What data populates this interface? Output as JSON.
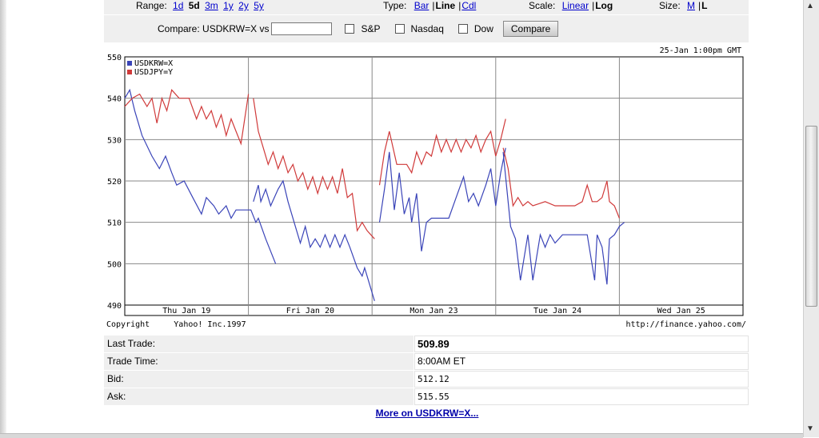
{
  "controls": {
    "range_label": "Range:",
    "range_options": [
      "1d",
      "5d",
      "3m",
      "1y",
      "2y",
      "5y"
    ],
    "range_selected": "5d",
    "type_label": "Type:",
    "type_bar": "Bar",
    "type_line": "Line",
    "type_cdl": "Cdl",
    "scale_label": "Scale:",
    "scale_linear": "Linear",
    "scale_log": "Log",
    "size_label": "Size:",
    "size_m": "M",
    "size_l": "L"
  },
  "compare": {
    "label": "Compare: USDKRW=X vs",
    "input_value": "",
    "sp": "S&P",
    "nasdaq": "Nasdaq",
    "dow": "Dow",
    "button": "Compare"
  },
  "chart_data": {
    "type": "line",
    "timestamp": "25-Jan 1:00pm GMT",
    "ylim": [
      490,
      550
    ],
    "y_ticks": [
      "550",
      "540",
      "530",
      "520",
      "510",
      "500",
      "490"
    ],
    "x_labels": [
      "Thu Jan 19",
      "Fri Jan 20",
      "Mon Jan 23",
      "Tue Jan 24",
      "Wed Jan 25"
    ],
    "series": [
      {
        "name": "USDKRW=X",
        "color": "#3a44b8",
        "segments": [
          [
            [
              0.0,
              540
            ],
            [
              0.04,
              542
            ],
            [
              0.08,
              537
            ],
            [
              0.14,
              531
            ],
            [
              0.22,
              526
            ],
            [
              0.28,
              523
            ],
            [
              0.33,
              526
            ],
            [
              0.38,
              522
            ],
            [
              0.42,
              519
            ],
            [
              0.48,
              520
            ],
            [
              0.55,
              516
            ],
            [
              0.62,
              512
            ],
            [
              0.66,
              516
            ],
            [
              0.72,
              514
            ],
            [
              0.76,
              512
            ],
            [
              0.82,
              514
            ],
            [
              0.86,
              511
            ],
            [
              0.9,
              513
            ],
            [
              0.96,
              513
            ],
            [
              1.02,
              513
            ],
            [
              1.06,
              510
            ],
            [
              1.08,
              511
            ],
            [
              1.14,
              506
            ],
            [
              1.22,
              500
            ]
          ],
          [
            [
              1.04,
              515
            ],
            [
              1.08,
              519
            ],
            [
              1.1,
              515
            ],
            [
              1.14,
              518
            ],
            [
              1.18,
              514
            ],
            [
              1.24,
              518
            ],
            [
              1.28,
              520
            ],
            [
              1.32,
              515
            ],
            [
              1.38,
              509
            ],
            [
              1.42,
              505
            ],
            [
              1.46,
              509
            ],
            [
              1.5,
              504
            ],
            [
              1.54,
              506
            ],
            [
              1.58,
              504
            ],
            [
              1.62,
              507
            ],
            [
              1.66,
              504
            ],
            [
              1.7,
              507
            ],
            [
              1.74,
              504
            ],
            [
              1.78,
              507
            ],
            [
              1.82,
              504
            ],
            [
              1.88,
              499
            ],
            [
              1.92,
              497
            ],
            [
              1.94,
              499
            ],
            [
              1.98,
              495
            ],
            [
              2.02,
              491
            ]
          ],
          [
            [
              2.06,
              510
            ],
            [
              2.1,
              518
            ],
            [
              2.14,
              527
            ],
            [
              2.18,
              513
            ],
            [
              2.22,
              522
            ],
            [
              2.26,
              512
            ],
            [
              2.3,
              516
            ],
            [
              2.32,
              510
            ],
            [
              2.36,
              517
            ],
            [
              2.4,
              503
            ],
            [
              2.44,
              510
            ],
            [
              2.48,
              511
            ],
            [
              2.56,
              511
            ],
            [
              2.62,
              511
            ],
            [
              2.68,
              516
            ],
            [
              2.74,
              521
            ],
            [
              2.78,
              515
            ],
            [
              2.82,
              517
            ],
            [
              2.86,
              514
            ],
            [
              2.92,
              519
            ],
            [
              2.96,
              523
            ],
            [
              3.0,
              514
            ],
            [
              3.04,
              522
            ],
            [
              3.08,
              528
            ]
          ],
          [
            [
              3.06,
              527
            ],
            [
              3.12,
              509
            ],
            [
              3.16,
              506
            ],
            [
              3.2,
              496
            ],
            [
              3.26,
              507
            ],
            [
              3.3,
              496
            ],
            [
              3.36,
              507
            ],
            [
              3.4,
              504
            ],
            [
              3.44,
              507
            ],
            [
              3.48,
              505
            ],
            [
              3.54,
              507
            ],
            [
              3.64,
              507
            ],
            [
              3.7,
              507
            ],
            [
              3.74,
              507
            ],
            [
              3.8,
              496
            ],
            [
              3.82,
              507
            ],
            [
              3.86,
              504
            ],
            [
              3.9,
              495
            ],
            [
              3.92,
              506
            ],
            [
              3.96,
              507
            ],
            [
              4.0,
              509
            ],
            [
              4.04,
              510
            ]
          ]
        ]
      },
      {
        "name": "USDJPY=Y",
        "color": "#d03a3a",
        "segments": [
          [
            [
              0.0,
              538
            ],
            [
              0.06,
              540
            ],
            [
              0.12,
              541
            ],
            [
              0.18,
              538
            ],
            [
              0.22,
              540
            ],
            [
              0.26,
              534
            ],
            [
              0.3,
              540
            ],
            [
              0.34,
              537
            ],
            [
              0.38,
              542
            ],
            [
              0.44,
              540
            ],
            [
              0.52,
              540
            ],
            [
              0.58,
              535
            ],
            [
              0.62,
              538
            ],
            [
              0.66,
              535
            ],
            [
              0.7,
              537
            ],
            [
              0.74,
              533
            ],
            [
              0.78,
              536
            ],
            [
              0.82,
              531
            ],
            [
              0.86,
              535
            ],
            [
              0.9,
              532
            ],
            [
              0.94,
              529
            ],
            [
              1.0,
              541
            ]
          ],
          [
            [
              1.04,
              540
            ],
            [
              1.08,
              532
            ],
            [
              1.12,
              528
            ],
            [
              1.16,
              524
            ],
            [
              1.2,
              527
            ],
            [
              1.24,
              523
            ],
            [
              1.28,
              526
            ],
            [
              1.32,
              522
            ],
            [
              1.36,
              524
            ],
            [
              1.4,
              520
            ],
            [
              1.44,
              522
            ],
            [
              1.48,
              518
            ],
            [
              1.52,
              521
            ],
            [
              1.56,
              517
            ],
            [
              1.6,
              521
            ],
            [
              1.64,
              518
            ],
            [
              1.68,
              521
            ],
            [
              1.72,
              517
            ],
            [
              1.76,
              523
            ],
            [
              1.8,
              516
            ],
            [
              1.84,
              517
            ],
            [
              1.88,
              508
            ],
            [
              1.92,
              510
            ],
            [
              1.96,
              508
            ],
            [
              2.02,
              506
            ]
          ],
          [
            [
              2.06,
              519
            ],
            [
              2.1,
              527
            ],
            [
              2.14,
              532
            ],
            [
              2.2,
              524
            ],
            [
              2.28,
              524
            ],
            [
              2.32,
              522
            ],
            [
              2.36,
              527
            ],
            [
              2.4,
              524
            ],
            [
              2.44,
              527
            ],
            [
              2.48,
              526
            ],
            [
              2.52,
              531
            ],
            [
              2.56,
              527
            ],
            [
              2.6,
              530
            ],
            [
              2.64,
              527
            ],
            [
              2.68,
              530
            ],
            [
              2.72,
              527
            ],
            [
              2.76,
              530
            ],
            [
              2.8,
              528
            ],
            [
              2.84,
              531
            ],
            [
              2.88,
              527
            ],
            [
              2.92,
              530
            ],
            [
              2.96,
              532
            ],
            [
              3.0,
              526
            ],
            [
              3.04,
              530
            ],
            [
              3.08,
              535
            ]
          ],
          [
            [
              3.06,
              528
            ],
            [
              3.1,
              523
            ],
            [
              3.14,
              514
            ],
            [
              3.18,
              516
            ],
            [
              3.22,
              514
            ],
            [
              3.26,
              515
            ],
            [
              3.3,
              514
            ],
            [
              3.4,
              515
            ],
            [
              3.48,
              514
            ],
            [
              3.56,
              514
            ],
            [
              3.64,
              514
            ],
            [
              3.7,
              515
            ],
            [
              3.74,
              519
            ],
            [
              3.78,
              515
            ],
            [
              3.82,
              515
            ],
            [
              3.86,
              516
            ],
            [
              3.9,
              520
            ],
            [
              3.92,
              515
            ],
            [
              3.96,
              514
            ],
            [
              4.0,
              511
            ]
          ]
        ]
      }
    ]
  },
  "footer": {
    "copyright": "Copyright     Yahoo! Inc.1997",
    "url": "http://finance.yahoo.com/"
  },
  "quote": {
    "last_trade_label": "Last Trade:",
    "last_trade_value": "509.89",
    "trade_time_label": "Trade Time:",
    "trade_time_value": "8:00AM ET",
    "bid_label": "Bid:",
    "bid_value": "512.12",
    "ask_label": "Ask:",
    "ask_value": "515.55"
  },
  "more_link": "More on USDKRW=X..."
}
